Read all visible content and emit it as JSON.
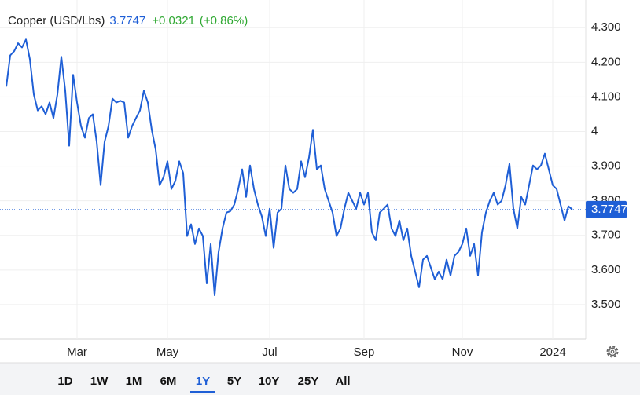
{
  "chart_data": {
    "type": "line",
    "title": "Copper (USD/Lbs)",
    "last_price": 3.7747,
    "change": "+0.0321",
    "change_percent": "(+0.86%)",
    "categories": [
      null,
      null,
      null,
      null,
      null,
      null,
      null,
      null,
      null,
      null,
      null,
      null,
      null,
      null,
      null,
      null,
      null,
      null,
      "Mar",
      null,
      null,
      null,
      null,
      null,
      null,
      null,
      null,
      null,
      null,
      null,
      null,
      null,
      null,
      null,
      null,
      null,
      null,
      null,
      null,
      null,
      null,
      "May",
      null,
      null,
      null,
      null,
      null,
      null,
      null,
      null,
      null,
      null,
      null,
      null,
      null,
      null,
      null,
      null,
      null,
      null,
      null,
      null,
      null,
      null,
      null,
      null,
      null,
      "Jul",
      null,
      null,
      null,
      null,
      null,
      null,
      null,
      null,
      null,
      null,
      null,
      null,
      null,
      null,
      null,
      null,
      null,
      null,
      null,
      null,
      null,
      null,
      null,
      "Sep",
      null,
      null,
      null,
      null,
      null,
      null,
      null,
      null,
      null,
      null,
      null,
      null,
      null,
      null,
      null,
      null,
      null,
      null,
      null,
      null,
      null,
      null,
      null,
      null,
      "Nov",
      null,
      null,
      null,
      null,
      null,
      null,
      null,
      null,
      null,
      null,
      null,
      null,
      null,
      null,
      null,
      null,
      null,
      null,
      null,
      null,
      null,
      null,
      "2024",
      null,
      null,
      null,
      null,
      null
    ],
    "series": [
      {
        "name": "Copper",
        "color": "#1f5fd6",
        "values": [
          4.13,
          4.22,
          4.232,
          4.255,
          4.243,
          4.266,
          4.209,
          4.107,
          4.061,
          4.073,
          4.05,
          4.084,
          4.039,
          4.107,
          4.216,
          4.118,
          3.959,
          4.164,
          4.084,
          4.016,
          3.982,
          4.039,
          4.05,
          3.97,
          3.845,
          3.97,
          4.016,
          4.095,
          4.084,
          4.089,
          4.084,
          3.982,
          4.016,
          4.039,
          4.061,
          4.118,
          4.084,
          4.005,
          3.948,
          3.845,
          3.868,
          3.914,
          3.834,
          3.857,
          3.914,
          3.88,
          3.698,
          3.732,
          3.675,
          3.72,
          3.698,
          3.561,
          3.675,
          3.527,
          3.652,
          3.72,
          3.766,
          3.77,
          3.789,
          3.834,
          3.891,
          3.811,
          3.902,
          3.834,
          3.789,
          3.755,
          3.698,
          3.777,
          3.664,
          3.766,
          3.777,
          3.902,
          3.834,
          3.823,
          3.834,
          3.914,
          3.868,
          3.925,
          4.005,
          3.891,
          3.902,
          3.834,
          3.8,
          3.766,
          3.698,
          3.72,
          3.777,
          3.823,
          3.8,
          3.777,
          3.823,
          3.789,
          3.823,
          3.709,
          3.686,
          3.766,
          3.777,
          3.789,
          3.72,
          3.698,
          3.743,
          3.686,
          3.72,
          3.641,
          3.595,
          3.55,
          3.63,
          3.641,
          3.607,
          3.573,
          3.595,
          3.573,
          3.63,
          3.584,
          3.641,
          3.652,
          3.675,
          3.72,
          3.641,
          3.675,
          3.584,
          3.709,
          3.766,
          3.8,
          3.823,
          3.789,
          3.8,
          3.845,
          3.907,
          3.777,
          3.72,
          3.811,
          3.789,
          3.845,
          3.902,
          3.891,
          3.902,
          3.936,
          3.891,
          3.845,
          3.834,
          3.789,
          3.743,
          3.784,
          3.7747
        ]
      }
    ],
    "ylim": [
      3.4,
      4.38
    ],
    "yticks": [
      {
        "value": 4.3,
        "label": "4.300"
      },
      {
        "value": 4.2,
        "label": "4.200"
      },
      {
        "value": 4.1,
        "label": "4.100"
      },
      4,
      {
        "value": 3.9,
        "label": "3.900"
      },
      {
        "value": 3.8,
        "label": "3.800"
      },
      {
        "value": 3.7,
        "label": "3.700"
      },
      {
        "value": 3.6,
        "label": "3.600"
      },
      {
        "value": 3.5,
        "label": "3.500"
      }
    ],
    "grid": true,
    "range_buttons": [
      "1D",
      "1W",
      "1M",
      "6M",
      "1Y",
      "5Y",
      "10Y",
      "25Y",
      "All"
    ],
    "selected_range": "1Y"
  }
}
